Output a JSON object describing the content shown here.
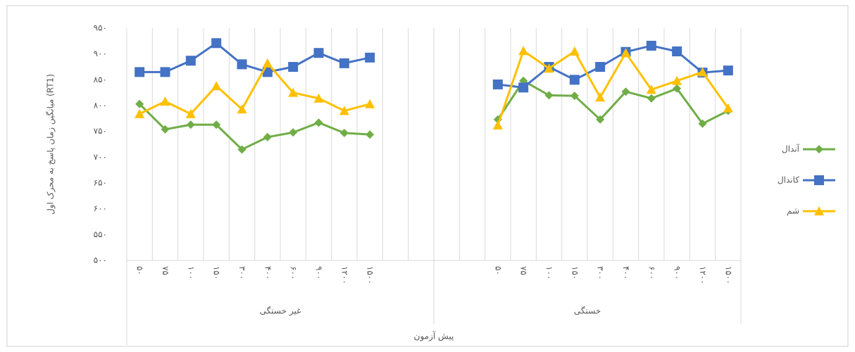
{
  "chart_data": {
    "type": "line",
    "y_label": "میانگین زمان پاسخ به محرک اول (RT1)",
    "category_groups": [
      {
        "label": "غیر خستگی",
        "categories": [
          "۵۰",
          "۷۵",
          "۱۰۰",
          "۱۵۰",
          "۳۰۰",
          "۴۰۰",
          "۶۰۰",
          "۹۰۰",
          "۱۲۰۰",
          "۱۵۰۰",
          null,
          null
        ]
      },
      {
        "label": "خستگی",
        "categories": [
          null,
          null,
          "۵۰",
          "۷۵",
          "۱۰۰",
          "۱۵۰",
          "۳۰۰",
          "۴۰۰",
          "۶۰۰",
          "۹۰۰",
          "۱۲۰۰",
          "۱۵۰۰"
        ]
      }
    ],
    "outer_label": "پیش آزمون",
    "series": [
      {
        "name": "آندال",
        "color": "#70ad47",
        "marker": "diamond",
        "values": [
          803,
          754,
          763,
          763,
          715,
          739,
          748,
          767,
          747,
          744,
          null,
          null,
          null,
          null,
          773,
          848,
          820,
          819,
          773,
          827,
          814,
          833,
          765,
          790
        ]
      },
      {
        "name": "کاندال",
        "color": "#4472c4",
        "marker": "square",
        "values": [
          865,
          865,
          887,
          921,
          880,
          865,
          875,
          902,
          882,
          893,
          null,
          null,
          null,
          null,
          841,
          835,
          875,
          850,
          875,
          904,
          916,
          905,
          864,
          868
        ]
      },
      {
        "name": "شم",
        "color": "#ffc000",
        "marker": "triangle",
        "values": [
          784,
          808,
          784,
          838,
          793,
          882,
          825,
          814,
          790,
          803,
          null,
          null,
          null,
          null,
          762,
          906,
          872,
          905,
          816,
          902,
          831,
          848,
          865,
          795
        ]
      }
    ],
    "ylim": [
      500,
      950
    ],
    "yticks": [
      {
        "value": 500,
        "label": "۵۰۰"
      },
      {
        "value": 550,
        "label": "۵۵۰"
      },
      {
        "value": 600,
        "label": "۶۰۰"
      },
      {
        "value": 650,
        "label": "۶۵۰"
      },
      {
        "value": 700,
        "label": "۷۰۰"
      },
      {
        "value": 750,
        "label": "۷۵۰"
      },
      {
        "value": 800,
        "label": "۸۰۰"
      },
      {
        "value": 850,
        "label": "۸۵۰"
      },
      {
        "value": 900,
        "label": "۹۰۰"
      },
      {
        "value": 950,
        "label": "۹۵۰"
      }
    ],
    "x_grid": true,
    "legend": "right"
  }
}
